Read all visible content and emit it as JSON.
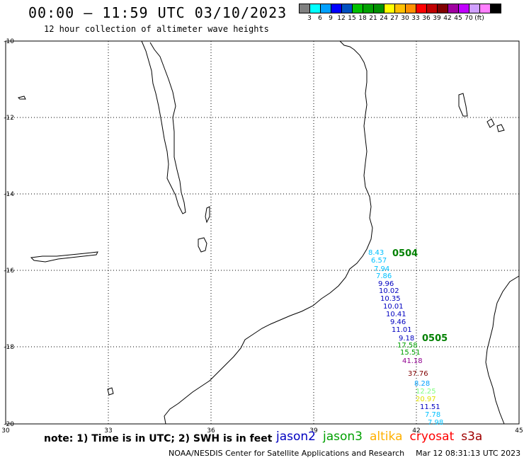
{
  "title": "00:00 – 11:59 UTC 03/10/2023",
  "subtitle": "12 hour collection of altimeter wave heights",
  "legend": {
    "colors": [
      "#808080",
      "#00ffff",
      "#00a0ff",
      "#0000ff",
      "#0050c0",
      "#00c000",
      "#00a000",
      "#009000",
      "#ffff00",
      "#ffc000",
      "#ff9000",
      "#ff0000",
      "#c00000",
      "#800000",
      "#a000a0",
      "#c000ff",
      "#d0a0ff",
      "#ff80ff",
      "#000000"
    ],
    "labels": [
      "3",
      "6",
      "9",
      "12",
      "15",
      "18",
      "21",
      "24",
      "27",
      "30",
      "33",
      "36",
      "39",
      "42",
      "45",
      "70",
      "(ft)"
    ]
  },
  "axes": {
    "lat_labels": [
      "-10",
      "-12",
      "-14",
      "-16",
      "-18",
      "-20"
    ],
    "lon_labels": [
      "30",
      "33",
      "36",
      "39",
      "42",
      "45"
    ]
  },
  "tracks": [
    {
      "label": "0504",
      "color": "#008000"
    },
    {
      "label": "0505",
      "color": "#008000"
    }
  ],
  "observations": [
    {
      "value": "8.43",
      "color": "#00c0ff"
    },
    {
      "value": "6.57",
      "color": "#00c0ff"
    },
    {
      "value": "7.94",
      "color": "#00c0ff"
    },
    {
      "value": "7.86",
      "color": "#00c0ff"
    },
    {
      "value": "9.96",
      "color": "#0000c0"
    },
    {
      "value": "10.02",
      "color": "#0000c0"
    },
    {
      "value": "10.35",
      "color": "#0000c0"
    },
    {
      "value": "10.01",
      "color": "#0000c0"
    },
    {
      "value": "10.41",
      "color": "#0000c0"
    },
    {
      "value": "9.46",
      "color": "#0000c0"
    },
    {
      "value": "11.01",
      "color": "#0000c0"
    },
    {
      "value": "9.18",
      "color": "#0000c0"
    },
    {
      "value": "17.58",
      "color": "#00a000"
    },
    {
      "value": "15.51",
      "color": "#00a000"
    },
    {
      "value": "41.18",
      "color": "#900090"
    },
    {
      "value": "37.76",
      "color": "#800000"
    },
    {
      "value": "8.28",
      "color": "#00a0ff"
    },
    {
      "value": "12.25",
      "color": "#80ff80"
    },
    {
      "value": "20.97",
      "color": "#e0e000"
    },
    {
      "value": "11.51",
      "color": "#0000c0"
    },
    {
      "value": "7.78",
      "color": "#00c0ff"
    },
    {
      "value": "7.98",
      "color": "#00c0ff"
    }
  ],
  "note": "note: 1) Time is in UTC; 2) SWH is in feet",
  "satellites": [
    {
      "name": "jason2",
      "color": "#0000c0"
    },
    {
      "name": "jason3",
      "color": "#00a000"
    },
    {
      "name": "altika",
      "color": "#ffb000"
    },
    {
      "name": "cryosat",
      "color": "#ff0000"
    },
    {
      "name": "s3a",
      "color": "#a00000"
    }
  ],
  "footer": {
    "credit": "NOAA/NESDIS Center for Satellite Applications and Research",
    "timestamp": "Mar 12 08:31:13 UTC 2023"
  }
}
